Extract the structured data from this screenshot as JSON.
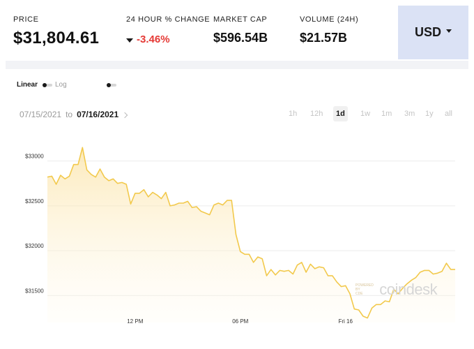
{
  "stats": {
    "price": {
      "label": "PRICE",
      "value": "$31,804.61"
    },
    "change": {
      "label": "24 HOUR % CHANGE",
      "value": "-3.46%"
    },
    "market_cap": {
      "label": "MARKET CAP",
      "value": "$596.54B"
    },
    "volume": {
      "label": "VOLUME (24H)",
      "value": "$21.57B"
    }
  },
  "currency": {
    "label": "USD"
  },
  "scale": {
    "linear": "Linear",
    "log": "Log"
  },
  "date_range": {
    "from": "07/15/2021",
    "sep": "to",
    "to": "07/16/2021"
  },
  "periods": [
    "1h",
    "12h",
    "1d",
    "1w",
    "1m",
    "3m",
    "1y",
    "all"
  ],
  "active_period": "1d",
  "watermark": {
    "brand": "coindesk",
    "small_lines": [
      "POWERED",
      "BY",
      "CDE"
    ]
  },
  "colors": {
    "line": "#f2c94c",
    "negative": "#e53935",
    "accent_bg": "#dbe2f5"
  },
  "chart_data": {
    "type": "area",
    "title": "",
    "xlabel": "",
    "ylabel": "",
    "y_ticks": [
      33000,
      32500,
      32000,
      31500
    ],
    "y_tick_labels": [
      "$33000",
      "$32500",
      "$32000",
      "$31500"
    ],
    "x_tick_labels": [
      {
        "label": "12 PM",
        "index": 20
      },
      {
        "label": "06 PM",
        "index": 44
      },
      {
        "label": "Fri 16",
        "index": 68
      }
    ],
    "ylim": [
      31200,
      33300
    ],
    "grid": true,
    "series": [
      {
        "values": [
          32820,
          32830,
          32740,
          32840,
          32800,
          32830,
          32960,
          32960,
          33150,
          32900,
          32850,
          32820,
          32910,
          32820,
          32780,
          32800,
          32750,
          32760,
          32740,
          32520,
          32640,
          32640,
          32680,
          32600,
          32650,
          32620,
          32580,
          32650,
          32500,
          32510,
          32530,
          32530,
          32550,
          32480,
          32490,
          32440,
          32420,
          32400,
          32510,
          32530,
          32510,
          32560,
          32560,
          32180,
          31990,
          31960,
          31960,
          31870,
          31930,
          31910,
          31720,
          31790,
          31730,
          31780,
          31770,
          31780,
          31740,
          31840,
          31870,
          31760,
          31850,
          31800,
          31820,
          31810,
          31720,
          31720,
          31650,
          31600,
          31610,
          31520,
          31350,
          31340,
          31270,
          31250,
          31360,
          31400,
          31400,
          31440,
          31430,
          31570,
          31520,
          31580,
          31630,
          31670,
          31700,
          31760,
          31780,
          31780,
          31740,
          31750,
          31770,
          31860,
          31790,
          31790
        ]
      }
    ]
  }
}
